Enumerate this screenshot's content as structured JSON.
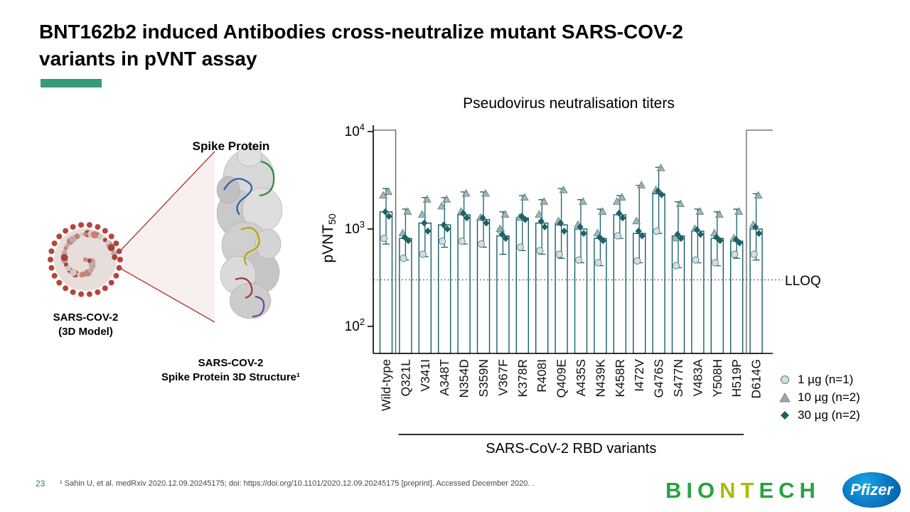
{
  "slide": {
    "title_line1": "BNT162b2 induced Antibodies cross-neutralize mutant SARS-COV-2",
    "title_line2": "variants in pVNT assay",
    "accent_color": "#349B7B",
    "page_number": "23",
    "citation": "¹ Sahin U, et al. medRxiv 2020.12.09.20245175; doi: https://doi.org/10.1101/2020.12.09.20245175 [preprint]. Accessed December 2020. ."
  },
  "figure_left": {
    "spike_title": "Spike Protein",
    "virus_label_line1": "SARS-COV-2",
    "virus_label_line2": "(3D Model)",
    "structure_label_line1": "SARS-COV-2",
    "structure_label_line2": "Spike Protein 3D Structure¹"
  },
  "chart_data": {
    "type": "bar-scatter",
    "title": "Pseudovirus neutralisation titers",
    "ylabel_main": "pVNT",
    "ylabel_sub": "50",
    "xlabel": "SARS-CoV-2  RBD variants",
    "yscale": "log",
    "ylim": [
      50,
      10000
    ],
    "yticks": [
      100,
      1000,
      10000
    ],
    "lloq": 300,
    "lloq_label": "LLOQ",
    "categories": [
      "Wild-type",
      "Q321L",
      "V341I",
      "A348T",
      "N354D",
      "S359N",
      "V367F",
      "K378R",
      "R408I",
      "Q409E",
      "A435S",
      "N439K",
      "K458R",
      "I472V",
      "G476S",
      "S477N",
      "V483A",
      "Y508H",
      "H519P",
      "D614G"
    ],
    "bar_means": [
      1500,
      800,
      1150,
      1100,
      1400,
      1250,
      850,
      1300,
      1150,
      1100,
      1000,
      800,
      1400,
      900,
      2300,
      850,
      950,
      800,
      750,
      1000
    ],
    "error_high": [
      2600,
      1600,
      2100,
      2100,
      2400,
      2400,
      1500,
      2200,
      2000,
      2600,
      2000,
      1600,
      2200,
      2800,
      4300,
      1900,
      1600,
      1500,
      1600,
      2300
    ],
    "error_low": [
      700,
      480,
      520,
      650,
      700,
      650,
      550,
      600,
      550,
      500,
      450,
      420,
      800,
      450,
      900,
      400,
      450,
      420,
      500,
      480
    ],
    "series": [
      {
        "name": "1 µg (n=1)",
        "marker": "circle",
        "values": [
          800,
          500,
          550,
          750,
          750,
          700,
          950,
          650,
          600,
          550,
          480,
          450,
          850,
          470,
          950,
          420,
          480,
          450,
          550,
          550
        ]
      },
      {
        "name": "10 µg (n=2)",
        "marker": "triangle",
        "values": [
          [
            2400,
            2200
          ],
          [
            1500,
            900
          ],
          [
            2000,
            1400
          ],
          [
            2000,
            1700
          ],
          [
            2300,
            1500
          ],
          [
            2300,
            1300
          ],
          [
            1400,
            1000
          ],
          [
            2100,
            1300
          ],
          [
            1900,
            1400
          ],
          [
            2500,
            1200
          ],
          [
            1900,
            1100
          ],
          [
            1500,
            900
          ],
          [
            2100,
            1900
          ],
          [
            2800,
            1200
          ],
          [
            4200,
            2500
          ],
          [
            1800,
            800
          ],
          [
            1500,
            1000
          ],
          [
            1400,
            900
          ],
          [
            1500,
            800
          ],
          [
            2200,
            1100
          ]
        ]
      },
      {
        "name": "30 µg (n=2)",
        "marker": "diamond",
        "values": [
          [
            1500,
            1350
          ],
          [
            820,
            760
          ],
          [
            1150,
            950
          ],
          [
            1100,
            1000
          ],
          [
            1450,
            1300
          ],
          [
            1300,
            1150
          ],
          [
            880,
            800
          ],
          [
            1350,
            1250
          ],
          [
            1200,
            1050
          ],
          [
            1150,
            950
          ],
          [
            1050,
            900
          ],
          [
            820,
            760
          ],
          [
            1450,
            1300
          ],
          [
            950,
            850
          ],
          [
            2450,
            2250
          ],
          [
            880,
            800
          ],
          [
            980,
            880
          ],
          [
            820,
            760
          ],
          [
            780,
            720
          ],
          [
            1050,
            900
          ]
        ]
      }
    ],
    "colors": {
      "bar_outline": "#175E66",
      "marker_1ug": "#cfe0e3",
      "marker_10ug": "#93a9ab",
      "marker_30ug": "#1d6068"
    }
  },
  "logos": {
    "biontech_1": "BIO",
    "biontech_2": "NT",
    "biontech_3": "ECH",
    "biontech_green": "#27A243",
    "biontech_lime": "#A6BE0B",
    "pfizer": "Pfizer",
    "pfizer_blue": "#0069B4"
  }
}
